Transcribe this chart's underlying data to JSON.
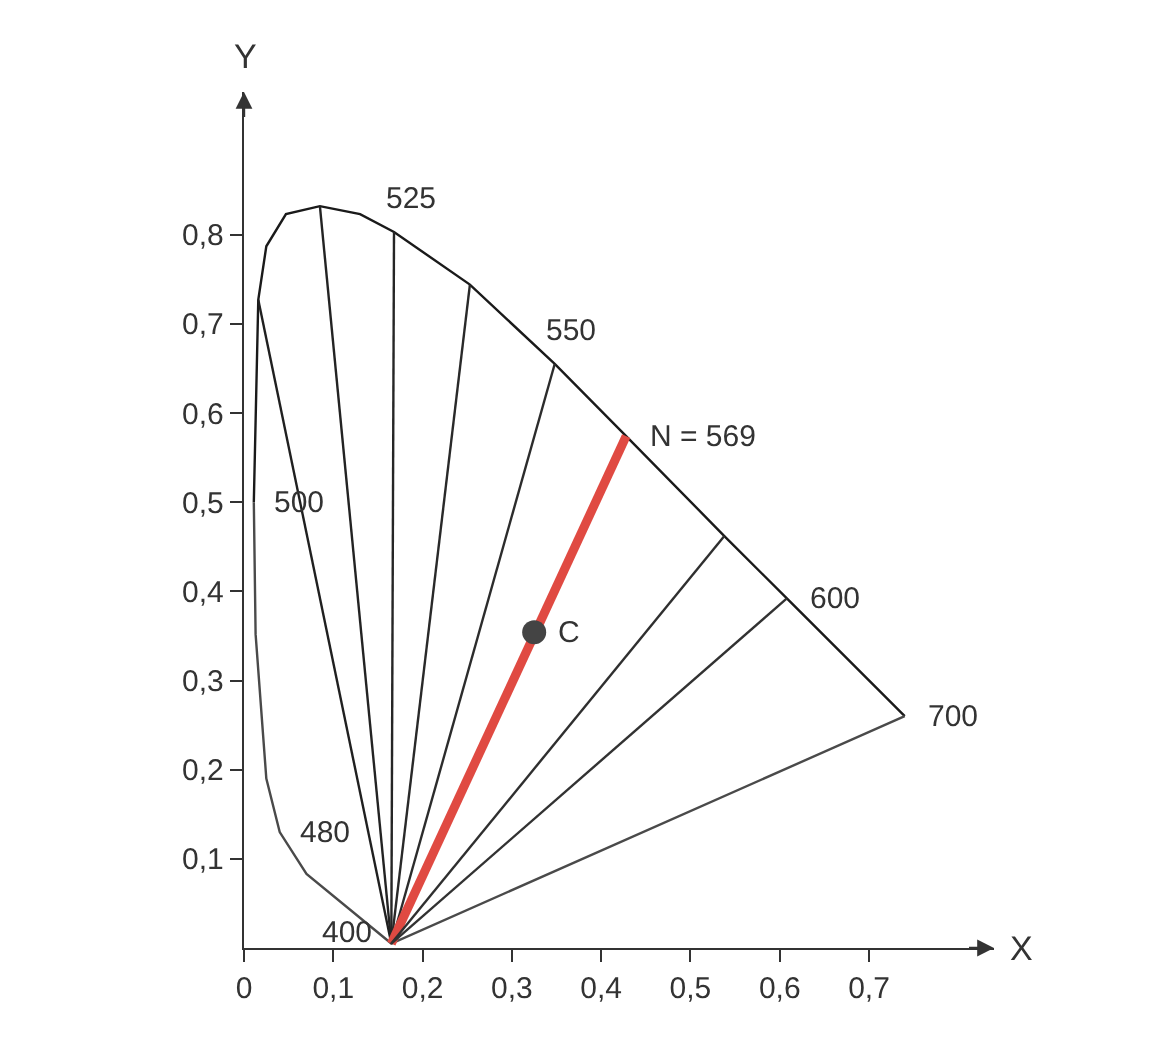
{
  "chart_data": {
    "type": "line",
    "xlabel": "X",
    "ylabel": "Y",
    "xlim": [
      0,
      0.84
    ],
    "ylim": [
      0,
      0.96
    ],
    "xticks": [
      {
        "value": 0,
        "label": "0"
      },
      {
        "value": 0.1,
        "label": "0,1"
      },
      {
        "value": 0.2,
        "label": "0,2"
      },
      {
        "value": 0.3,
        "label": "0,3"
      },
      {
        "value": 0.4,
        "label": "0,4"
      },
      {
        "value": 0.5,
        "label": "0,5"
      },
      {
        "value": 0.6,
        "label": "0,6"
      },
      {
        "value": 0.7,
        "label": "0,7"
      }
    ],
    "yticks": [
      {
        "value": 0.1,
        "label": "0,1"
      },
      {
        "value": 0.2,
        "label": "0,2"
      },
      {
        "value": 0.3,
        "label": "0,3"
      },
      {
        "value": 0.4,
        "label": "0,4"
      },
      {
        "value": 0.5,
        "label": "0,5"
      },
      {
        "value": 0.6,
        "label": "0,6"
      },
      {
        "value": 0.7,
        "label": "0,7"
      },
      {
        "value": 0.8,
        "label": "0,8"
      }
    ],
    "grid": false,
    "marker": "none",
    "line_style": "solid",
    "series": [
      {
        "color": "#1a1a1a",
        "x": [
          0.011,
          0.016,
          0.025,
          0.047,
          0.085,
          0.13,
          0.168,
          0.253,
          0.348,
          0.428,
          0.538,
          0.608,
          0.74
        ],
        "values": [
          0.5,
          0.727,
          0.787,
          0.823,
          0.832,
          0.823,
          0.803,
          0.744,
          0.655,
          0.574,
          0.462,
          0.392,
          0.26
        ]
      },
      {
        "color": "#4a4a4a",
        "x": [
          0.011,
          0.013,
          0.025,
          0.04,
          0.07,
          0.165,
          0.74
        ],
        "values": [
          0.5,
          0.352,
          0.19,
          0.13,
          0.083,
          0.005,
          0.26
        ]
      },
      {
        "color": "#202020",
        "x": [
          0.165,
          0.016
        ],
        "values": [
          0.005,
          0.727
        ]
      },
      {
        "color": "#232323",
        "x": [
          0.165,
          0.085
        ],
        "values": [
          0.005,
          0.832
        ]
      },
      {
        "color": "#262626",
        "x": [
          0.165,
          0.168
        ],
        "values": [
          0.005,
          0.803
        ]
      },
      {
        "color": "#292929",
        "x": [
          0.165,
          0.253
        ],
        "values": [
          0.005,
          0.744
        ]
      },
      {
        "color": "#2c2c2c",
        "x": [
          0.165,
          0.348
        ],
        "values": [
          0.005,
          0.655
        ]
      },
      {
        "color": "#e04a42",
        "x": [
          0.165,
          0.428
        ],
        "values": [
          0.005,
          0.574
        ]
      },
      {
        "color": "#2f2f2f",
        "x": [
          0.165,
          0.538
        ],
        "values": [
          0.005,
          0.462
        ]
      },
      {
        "color": "#323232",
        "x": [
          0.165,
          0.608
        ],
        "values": [
          0.005,
          0.392
        ]
      },
      {
        "type": "scatter",
        "marker": "circle",
        "color": "#444444",
        "x": [
          0.325
        ],
        "values": [
          0.354
        ]
      }
    ],
    "annotations": [
      {
        "text": "525",
        "x": 0.168,
        "y": 0.803
      },
      {
        "text": "550",
        "x": 0.348,
        "y": 0.655
      },
      {
        "text": "N = 569",
        "x": 0.428,
        "y": 0.574
      },
      {
        "text": "500",
        "x": 0.011,
        "y": 0.5
      },
      {
        "text": "600",
        "x": 0.608,
        "y": 0.392
      },
      {
        "text": "700",
        "x": 0.74,
        "y": 0.26
      },
      {
        "text": "480",
        "x": 0.04,
        "y": 0.13
      },
      {
        "text": "400",
        "x": 0.165,
        "y": 0.005
      },
      {
        "text": "C",
        "x": 0.325,
        "y": 0.354
      }
    ]
  }
}
